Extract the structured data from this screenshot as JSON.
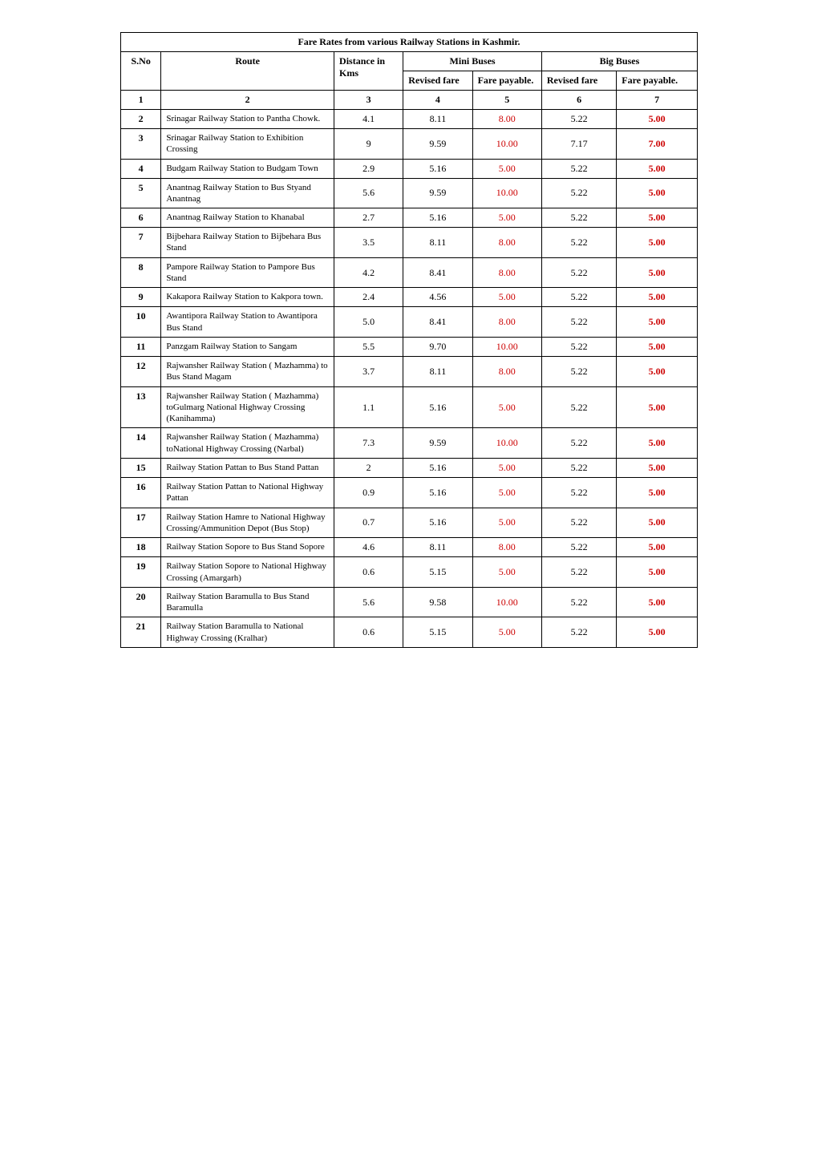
{
  "title": "Fare  Rates from various Railway Stations in Kashmir.",
  "headers": {
    "sno": "S.No",
    "route": "Route",
    "distance": "Distance in Kms",
    "mini_buses": "Mini Buses",
    "big_buses": "Big Buses",
    "revised_fare": "Revised fare",
    "fare_payable": "Fare payable.",
    "revised_fare2": "Revised fare",
    "fare_payable2": "Fare payable."
  },
  "colnums": [
    "1",
    "2",
    "3",
    "4",
    "5",
    "6",
    "7"
  ],
  "colors": {
    "red": "#cc0000",
    "black": "#000000"
  },
  "rows": [
    {
      "sno": "2",
      "route": "Srinagar Railway Station to Pantha Chowk.",
      "dist": "4.1",
      "rev": "8.11",
      "mf": "8.00",
      "brev": "5.22",
      "bf": "5.00"
    },
    {
      "sno": "3",
      "route": "Srinagar Railway Station to Exhibition Crossing",
      "dist": "9",
      "rev": "9.59",
      "mf": "10.00",
      "brev": "7.17",
      "bf": "7.00"
    },
    {
      "sno": "4",
      "route": "Budgam Railway Station to Budgam Town",
      "dist": "2.9",
      "rev": "5.16",
      "mf": "5.00",
      "brev": "5.22",
      "bf": "5.00"
    },
    {
      "sno": "5",
      "route": "Anantnag Railway Station to Bus Styand Anantnag",
      "dist": "5.6",
      "rev": "9.59",
      "mf": "10.00",
      "brev": "5.22",
      "bf": "5.00"
    },
    {
      "sno": "6",
      "route": "Anantnag Railway Station to Khanabal",
      "dist": "2.7",
      "rev": "5.16",
      "mf": "5.00",
      "brev": "5.22",
      "bf": "5.00"
    },
    {
      "sno": "7",
      "route": "Bijbehara Railway Station to Bijbehara  Bus Stand",
      "dist": "3.5",
      "rev": "8.11",
      "mf": "8.00",
      "brev": "5.22",
      "bf": "5.00"
    },
    {
      "sno": "8",
      "route": "Pampore Railway Station to Pampore Bus Stand",
      "dist": "4.2",
      "rev": "8.41",
      "mf": "8.00",
      "brev": "5.22",
      "bf": "5.00"
    },
    {
      "sno": "9",
      "route": "Kakapora Railway Station to Kakpora town.",
      "dist": "2.4",
      "rev": "4.56",
      "mf": "5.00",
      "brev": "5.22",
      "bf": "5.00"
    },
    {
      "sno": "10",
      "route": "Awantipora Railway Station to Awantipora  Bus Stand",
      "dist": "5.0",
      "rev": "8.41",
      "mf": "8.00",
      "brev": "5.22",
      "bf": "5.00"
    },
    {
      "sno": "11",
      "route": "Panzgam Railway Station to Sangam",
      "dist": "5.5",
      "rev": "9.70",
      "mf": "10.00",
      "brev": "5.22",
      "bf": "5.00"
    },
    {
      "sno": "12",
      "route": "Rajwansher Railway Station ( Mazhamma) to Bus Stand Magam",
      "dist": "3.7",
      "rev": "8.11",
      "mf": "8.00",
      "brev": "5.22",
      "bf": "5.00"
    },
    {
      "sno": "13",
      "route": "Rajwansher Railway Station ( Mazhamma) toGulmarg National Highway Crossing (Kanihamma)",
      "dist": "1.1",
      "rev": "5.16",
      "mf": "5.00",
      "brev": "5.22",
      "bf": "5.00"
    },
    {
      "sno": "14",
      "route": "Rajwansher Railway Station ( Mazhamma) toNational Highway Crossing (Narbal)",
      "dist": "7.3",
      "rev": "9.59",
      "mf": "10.00",
      "brev": "5.22",
      "bf": "5.00"
    },
    {
      "sno": "15",
      "route": "Railway  Station Pattan  to Bus Stand Pattan",
      "dist": "2",
      "rev": "5.16",
      "mf": "5.00",
      "brev": "5.22",
      "bf": "5.00"
    },
    {
      "sno": "16",
      "route": "Railway Station Pattan to National Highway Pattan",
      "dist": "0.9",
      "rev": "5.16",
      "mf": "5.00",
      "brev": "5.22",
      "bf": "5.00"
    },
    {
      "sno": "17",
      "route": "Railway Station Hamre to National Highway Crossing/Ammunition Depot (Bus Stop)",
      "dist": "0.7",
      "rev": "5.16",
      "mf": "5.00",
      "brev": "5.22",
      "bf": "5.00"
    },
    {
      "sno": "18",
      "route": "Railway Station Sopore to Bus Stand Sopore",
      "dist": "4.6",
      "rev": "8.11",
      "mf": "8.00",
      "brev": "5.22",
      "bf": "5.00"
    },
    {
      "sno": "19",
      "route": "Railway Station Sopore to National Highway Crossing (Amargarh)",
      "dist": "0.6",
      "rev": "5.15",
      "mf": "5.00",
      "brev": "5.22",
      "bf": "5.00"
    },
    {
      "sno": "20",
      "route": "Railway Station Baramulla to Bus Stand Baramulla",
      "dist": "5.6",
      "rev": "9.58",
      "mf": "10.00",
      "brev": "5.22",
      "bf": "5.00"
    },
    {
      "sno": "21",
      "route": "Railway Station Baramulla to National Highway Crossing (Kralhar)",
      "dist": "0.6",
      "rev": "5.15",
      "mf": "5.00",
      "brev": "5.22",
      "bf": "5.00"
    }
  ]
}
